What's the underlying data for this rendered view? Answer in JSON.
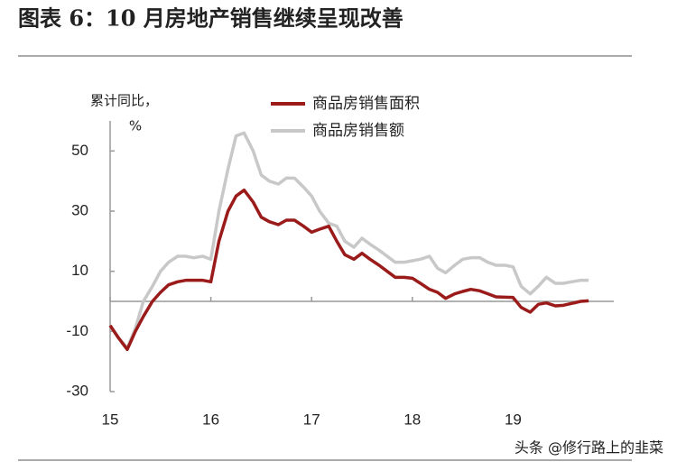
{
  "chart_data": {
    "type": "line",
    "title": "图表 6：10 月房地产销售继续呈现改善",
    "y_label": "累计同比，",
    "y_unit": "%",
    "watermark": "头条 @修行路上的韭菜",
    "x": [
      15.0,
      15.08,
      15.17,
      15.25,
      15.33,
      15.42,
      15.5,
      15.58,
      15.67,
      15.75,
      15.83,
      15.92,
      16.0,
      16.08,
      16.17,
      16.25,
      16.33,
      16.42,
      16.5,
      16.58,
      16.67,
      16.75,
      16.83,
      16.92,
      17.0,
      17.08,
      17.17,
      17.25,
      17.33,
      17.42,
      17.5,
      17.58,
      17.67,
      17.75,
      17.83,
      17.92,
      18.0,
      18.08,
      18.17,
      18.25,
      18.33,
      18.42,
      18.5,
      18.58,
      18.67,
      18.75,
      18.83,
      18.92,
      19.0,
      19.08,
      19.17,
      19.25,
      19.33,
      19.42,
      19.5,
      19.58,
      19.67,
      19.75
    ],
    "series": [
      {
        "name": "商品房销售面积",
        "color": "#9b1b1b",
        "width": 3.5,
        "values": [
          -8,
          -12,
          -16,
          -10,
          -5,
          0,
          3,
          5.5,
          6.5,
          7,
          7,
          7,
          6.5,
          20,
          30,
          35,
          37,
          33,
          28,
          26.5,
          25.5,
          27,
          27,
          25,
          23,
          24,
          25,
          20,
          15.5,
          14,
          16,
          14,
          12,
          10,
          8,
          8,
          7.7,
          6,
          4,
          3,
          1,
          2.5,
          3.3,
          4,
          3.5,
          2.5,
          1.5,
          1.4,
          1.3,
          -2,
          -3.6,
          -1,
          -0.5,
          -1.5,
          -1.3,
          -0.7,
          0,
          0.2
        ]
      },
      {
        "name": "商品房销售额",
        "color": "#c8c8c8",
        "width": 3.5,
        "values": [
          -8,
          -12,
          -15.5,
          -9,
          0,
          5,
          10,
          13,
          15,
          15,
          14.5,
          15,
          14,
          30,
          44,
          55,
          56,
          50,
          42,
          40,
          39,
          41,
          41,
          38,
          35,
          30,
          26,
          25,
          20,
          18,
          21,
          19,
          17,
          15,
          13,
          13,
          13.5,
          14,
          15,
          11,
          9.5,
          12,
          14,
          14.5,
          14.5,
          13,
          12,
          12,
          11.5,
          5,
          2.5,
          5,
          8,
          6,
          6,
          6.5,
          7,
          7
        ]
      }
    ],
    "xlim": [
      15,
      20
    ],
    "xticks": [
      15,
      16,
      17,
      18,
      19
    ],
    "ylim": [
      -30,
      60
    ],
    "yticks": [
      -30,
      -10,
      10,
      30,
      50
    ],
    "grid": false
  }
}
